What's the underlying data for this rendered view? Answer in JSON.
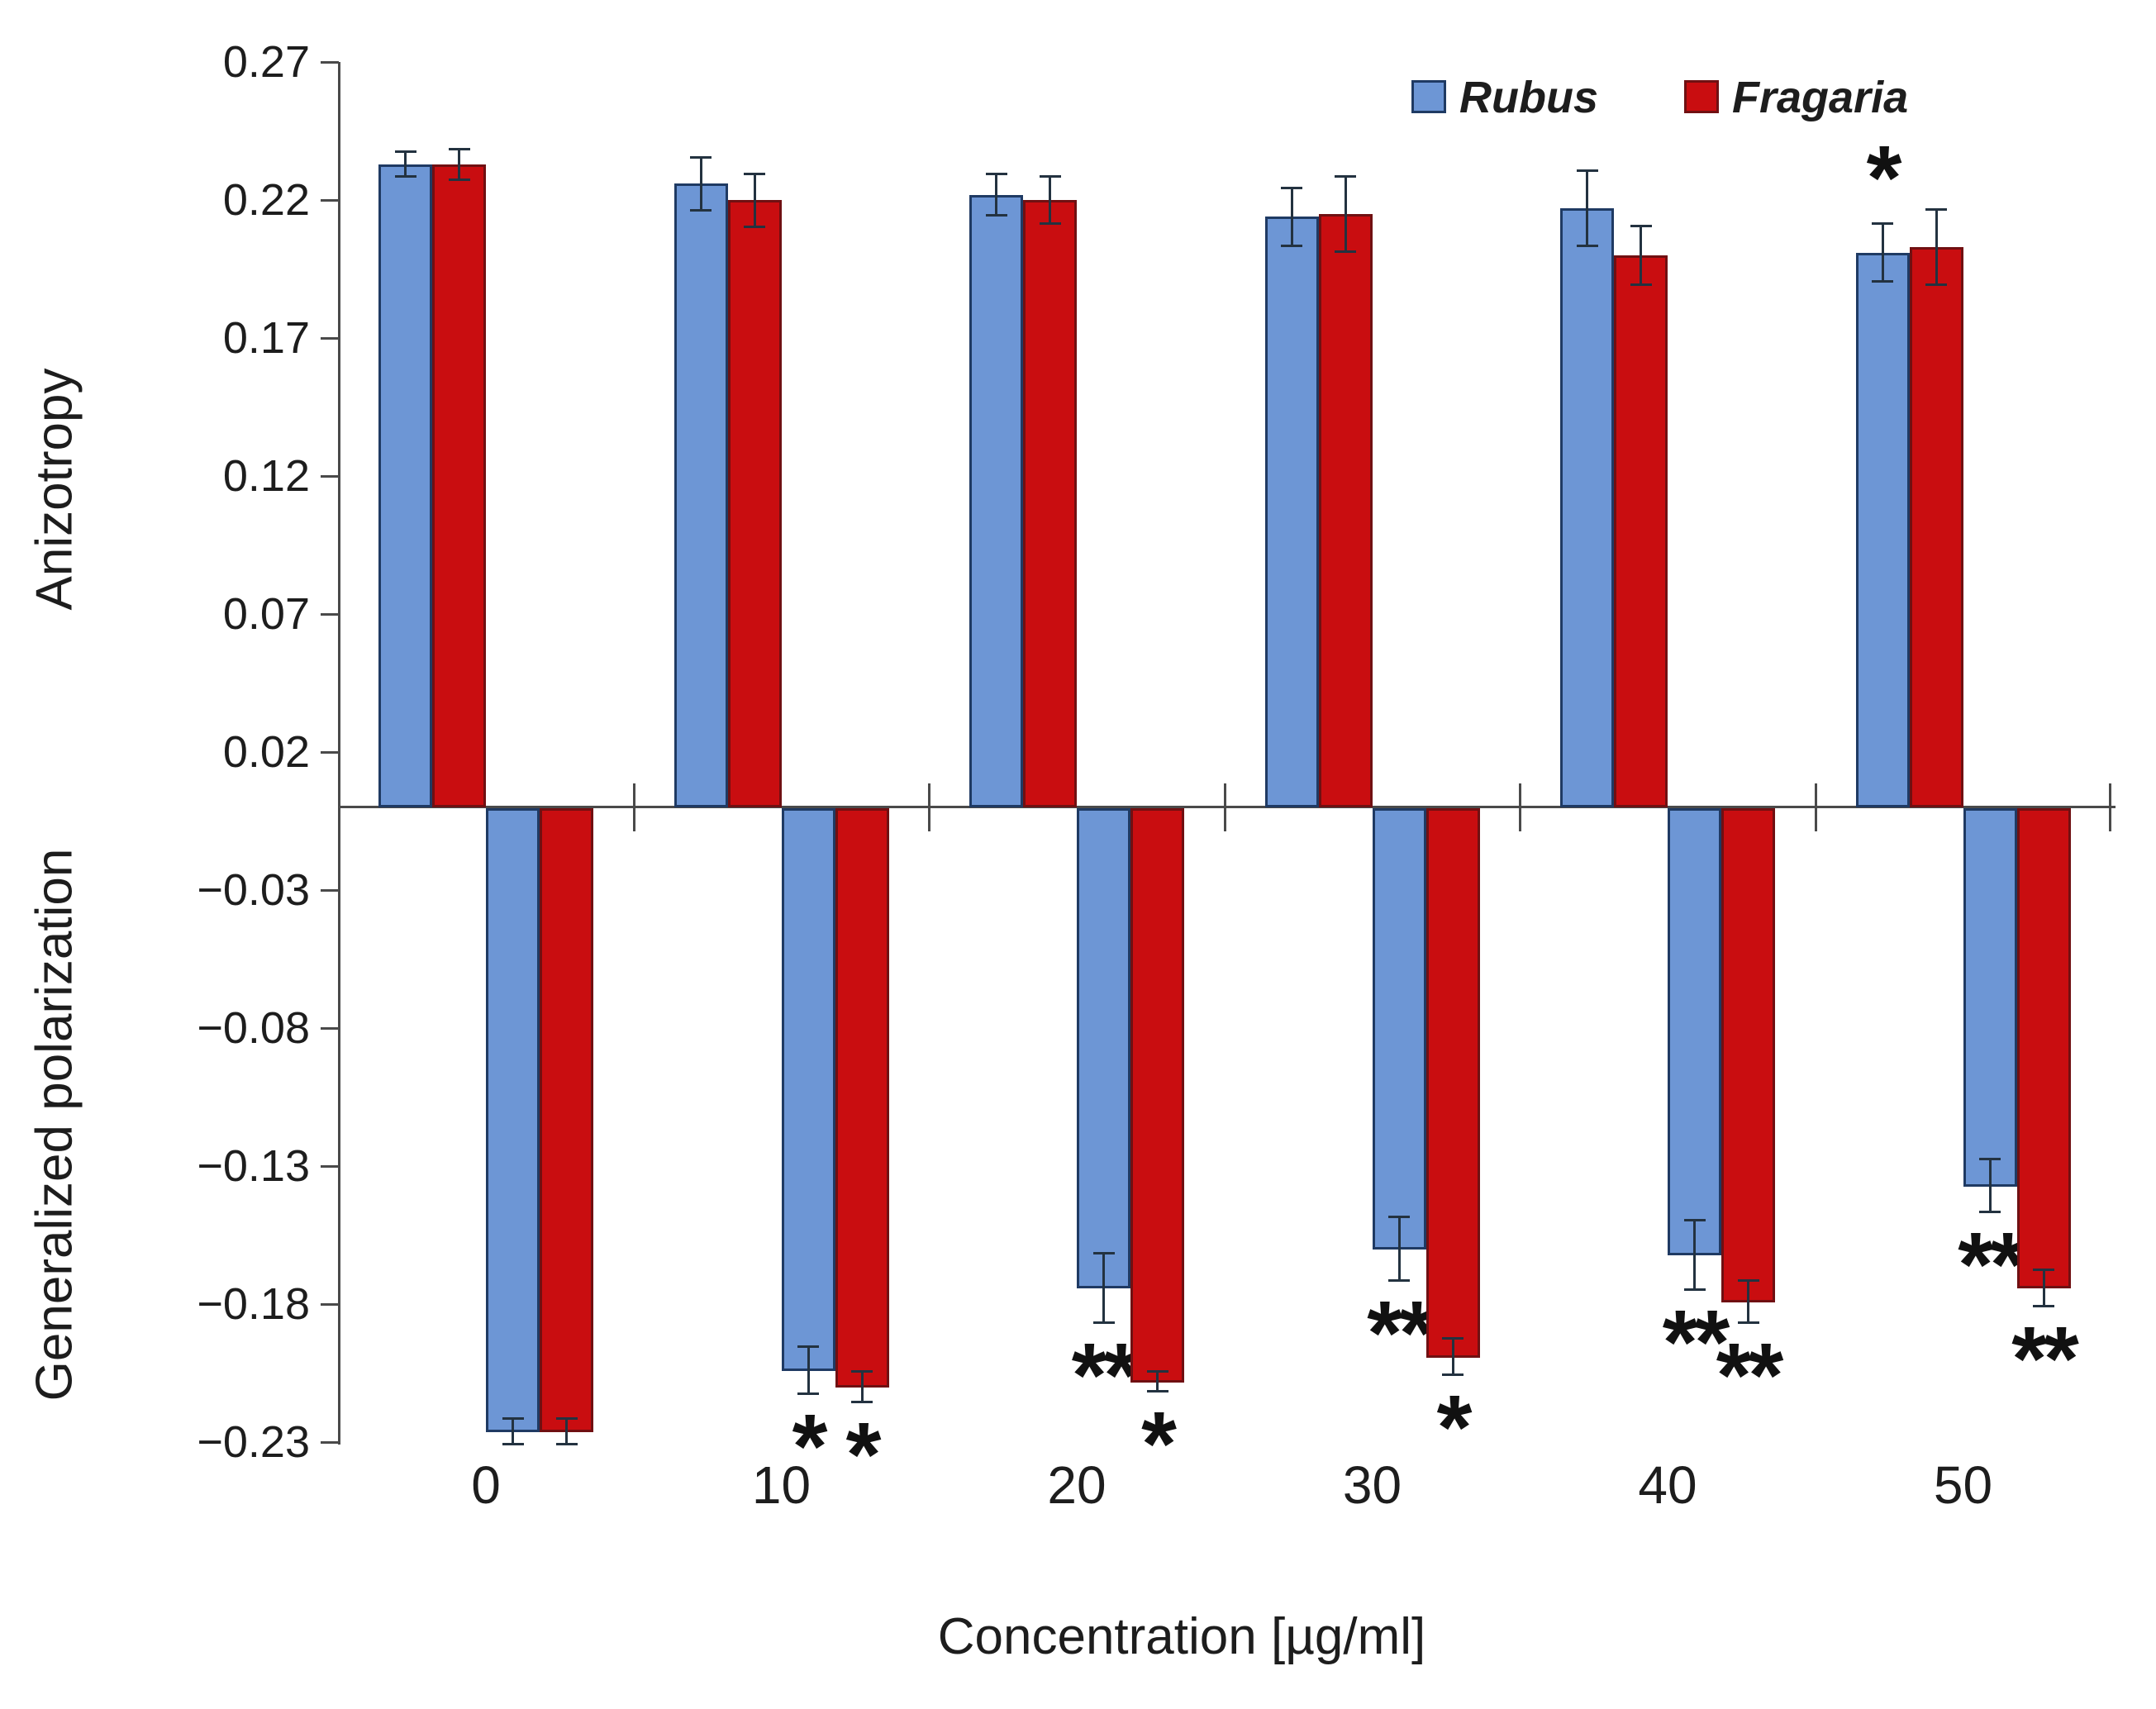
{
  "legend": {
    "items": [
      {
        "label": "Rubus",
        "color": "#6D96D5",
        "border": "#1F3A63"
      },
      {
        "label": "Fragaria",
        "color": "#C90D10",
        "border": "#701012"
      }
    ]
  },
  "axes": {
    "y_tick_labels": [
      "0.27",
      "0.22",
      "0.17",
      "0.12",
      "0.07",
      "0.02",
      "−0.03",
      "−0.08",
      "−0.13",
      "−0.18",
      "−0.23"
    ],
    "x_tick_labels": [
      "0",
      "10",
      "20",
      "30",
      "40",
      "50"
    ],
    "top_axis_title": "Anizotropy",
    "bottom_axis_title": "Generalized polarization",
    "x_axis_title": "Concentration [µg/ml]"
  },
  "colors": {
    "rubus_fill": "#6D96D5",
    "rubus_border": "#1F3A63",
    "fragaria_fill": "#C90D10",
    "fragaria_border": "#701012",
    "error_bar": "#233240",
    "axis": "#4a4a4a"
  },
  "chart_data": {
    "type": "bar",
    "categories": [
      "0",
      "10",
      "20",
      "30",
      "40",
      "50"
    ],
    "xlabel": "Concentration [µg/ml]",
    "ylim": [
      -0.23,
      0.27
    ],
    "grid": false,
    "legend_position": "top-right",
    "panels": [
      {
        "id": "anisotropy",
        "ylabel": "Anizotropy",
        "direction": "up",
        "series": [
          {
            "name": "Rubus",
            "values": [
              0.233,
              0.226,
              0.222,
              0.214,
              0.217,
              0.201
            ],
            "errors": [
              0.005,
              0.01,
              0.008,
              0.011,
              0.014,
              0.011
            ],
            "significance": [
              "",
              "",
              "",
              "",
              "",
              "*"
            ]
          },
          {
            "name": "Fragaria",
            "values": [
              0.233,
              0.22,
              0.22,
              0.215,
              0.2,
              0.203
            ],
            "errors": [
              0.006,
              0.01,
              0.009,
              0.014,
              0.011,
              0.014
            ],
            "significance": [
              "",
              "",
              "",
              "",
              "",
              ""
            ]
          }
        ]
      },
      {
        "id": "generalized-polarization",
        "ylabel": "Generalized polarization",
        "direction": "down",
        "series": [
          {
            "name": "Rubus",
            "values": [
              -0.226,
              -0.204,
              -0.174,
              -0.16,
              -0.162,
              -0.137
            ],
            "errors": [
              0.005,
              0.009,
              0.013,
              0.012,
              0.013,
              0.01
            ],
            "significance": [
              "",
              "*",
              "**",
              "**",
              "**",
              "**"
            ]
          },
          {
            "name": "Fragaria",
            "values": [
              -0.226,
              -0.21,
              -0.208,
              -0.199,
              -0.179,
              -0.174
            ],
            "errors": [
              0.005,
              0.006,
              0.004,
              0.007,
              0.008,
              0.007
            ],
            "significance": [
              "",
              "*",
              "*",
              "*",
              "**",
              "**"
            ]
          }
        ]
      }
    ]
  }
}
